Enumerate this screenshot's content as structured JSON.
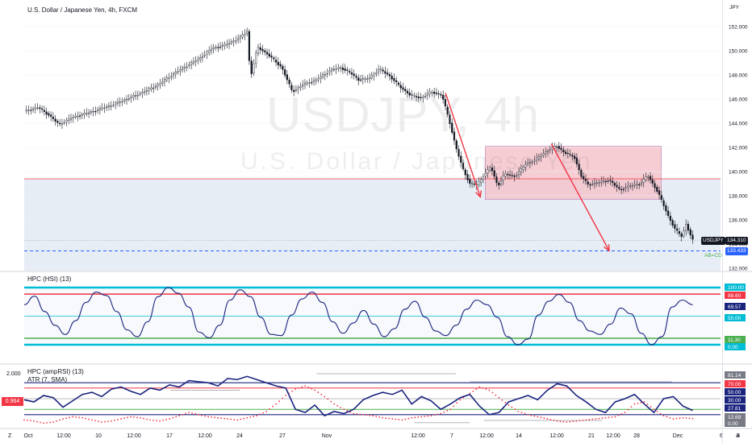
{
  "header": {
    "symbol_desc": "U.S. Dollar / Japanese Yen, 4h, FXCM",
    "currency": "JPY"
  },
  "watermark": {
    "line1": "USDJPY, 4h",
    "line2": "U.S. Dollar / Japanese Yen"
  },
  "indicators": {
    "hsi_title": "HPC (HSI) (13)",
    "amprsi_title": "HPC (ampRSI) (13)",
    "atr_title": "ATR (7, SMA)"
  },
  "badges": {
    "symbol": "USDJPY",
    "last_price": "134.310",
    "target_price": "133.433",
    "target_label": "AB=CD",
    "left_value": "0.964",
    "left_axis_value": "2.000"
  },
  "corner_labels": {
    "left": "Z",
    "right": "A"
  },
  "colors": {
    "accent_red": "#f23645",
    "navy": "#1a237e",
    "cyan": "#00bcd4",
    "green": "#4caf50",
    "dashed_blue": "#2962ff",
    "zone_blue": "#dfe7f2",
    "zone_pink": "#f5c5cc"
  },
  "chart_data": [
    {
      "type": "line",
      "name": "main-price",
      "x_tick_labels": [
        "Oct",
        "12:00",
        "10",
        "12:00",
        "17",
        "12:00",
        "24",
        "27",
        "Nov",
        "12:00",
        "7",
        "12:00",
        "14",
        "12:00",
        "21",
        "12:00",
        "28",
        "Dec",
        "6",
        "9"
      ],
      "y_tick_labels": [
        "152.000",
        "150.000",
        "148.000",
        "146.000",
        "144.000",
        "142.000",
        "140.000",
        "138.000",
        "136.000",
        "134.000",
        "132.000"
      ],
      "ylim": [
        131.3,
        153.4
      ],
      "price_path": [
        [
          0,
          145.0
        ],
        [
          0.02,
          145.3
        ],
        [
          0.035,
          144.7
        ],
        [
          0.05,
          143.9
        ],
        [
          0.07,
          144.5
        ],
        [
          0.1,
          145.0
        ],
        [
          0.13,
          145.6
        ],
        [
          0.16,
          146.3
        ],
        [
          0.19,
          147.1
        ],
        [
          0.22,
          148.3
        ],
        [
          0.25,
          149.3
        ],
        [
          0.27,
          150.2
        ],
        [
          0.29,
          150.5
        ],
        [
          0.31,
          151.1
        ],
        [
          0.32,
          151.6
        ],
        [
          0.325,
          147.8
        ],
        [
          0.335,
          150.3
        ],
        [
          0.35,
          149.7
        ],
        [
          0.37,
          148.6
        ],
        [
          0.385,
          146.6
        ],
        [
          0.4,
          147.2
        ],
        [
          0.42,
          147.6
        ],
        [
          0.44,
          148.4
        ],
        [
          0.455,
          148.6
        ],
        [
          0.47,
          148.1
        ],
        [
          0.48,
          147.6
        ],
        [
          0.495,
          147.7
        ],
        [
          0.51,
          148.5
        ],
        [
          0.525,
          147.9
        ],
        [
          0.54,
          147.0
        ],
        [
          0.555,
          146.3
        ],
        [
          0.57,
          146.1
        ],
        [
          0.585,
          146.6
        ],
        [
          0.6,
          146.3
        ],
        [
          0.61,
          144.3
        ],
        [
          0.62,
          142.0
        ],
        [
          0.63,
          140.2
        ],
        [
          0.64,
          139.0
        ],
        [
          0.65,
          138.9
        ],
        [
          0.66,
          139.7
        ],
        [
          0.67,
          140.4
        ],
        [
          0.68,
          138.8
        ],
        [
          0.69,
          139.8
        ],
        [
          0.705,
          139.6
        ],
        [
          0.72,
          140.6
        ],
        [
          0.735,
          141.0
        ],
        [
          0.75,
          141.7
        ],
        [
          0.765,
          142.1
        ],
        [
          0.775,
          141.6
        ],
        [
          0.79,
          141.2
        ],
        [
          0.8,
          139.6
        ],
        [
          0.81,
          138.9
        ],
        [
          0.825,
          139.1
        ],
        [
          0.84,
          139.3
        ],
        [
          0.855,
          138.5
        ],
        [
          0.87,
          138.8
        ],
        [
          0.885,
          139.0
        ],
        [
          0.895,
          139.7
        ],
        [
          0.91,
          138.3
        ],
        [
          0.925,
          136.3
        ],
        [
          0.935,
          135.2
        ],
        [
          0.945,
          134.6
        ],
        [
          0.95,
          135.7
        ],
        [
          0.96,
          134.31
        ]
      ],
      "horizontal_levels": [
        {
          "label": "resistance-red",
          "value": 139.4,
          "color": "#f23645"
        },
        {
          "label": "target-dashed",
          "value": 133.433,
          "color": "#2962ff"
        }
      ],
      "zones": [
        {
          "label": "blue-range",
          "from": 131.8,
          "to": 139.4
        },
        {
          "label": "pink-range",
          "from": 137.7,
          "to": 142.1
        }
      ],
      "arrows": [
        {
          "from": [
            146.5,
            0.605
          ],
          "to": [
            137.9,
            0.655
          ]
        },
        {
          "from": [
            142.3,
            0.757
          ],
          "to": [
            133.45,
            0.84
          ]
        }
      ]
    },
    {
      "type": "line",
      "name": "HPC (HSI) (13)",
      "ylim": [
        0,
        100
      ],
      "levels": [
        {
          "value": 100,
          "label": "100.00",
          "color": "#00bcd4"
        },
        {
          "value": 88.6,
          "label": "88.60",
          "color": "#f23645"
        },
        {
          "value": 69.57,
          "label": "69.57",
          "color": "#1a237e"
        },
        {
          "value": 50,
          "label": "50.00",
          "color": "#00bcd4"
        },
        {
          "value": 11.3,
          "label": "11.30",
          "color": "#4caf50"
        },
        {
          "value": 0,
          "label": "0.00",
          "color": "#00bcd4"
        }
      ],
      "values": [
        70,
        85,
        58,
        34,
        18,
        42,
        74,
        92,
        86,
        58,
        26,
        14,
        40,
        84,
        100,
        90,
        66,
        22,
        12,
        34,
        78,
        96,
        84,
        48,
        18,
        16,
        52,
        80,
        92,
        74,
        40,
        20,
        38,
        60,
        36,
        14,
        28,
        62,
        76,
        48,
        24,
        16,
        34,
        62,
        78,
        70,
        48,
        14,
        0,
        10,
        52,
        76,
        88,
        74,
        42,
        24,
        18,
        36,
        64,
        54,
        20,
        0,
        14,
        66,
        78,
        70
      ]
    },
    {
      "type": "line",
      "name": "HPC (ampRSI) (13)",
      "ylim": [
        0,
        100
      ],
      "levels": [
        {
          "value": 81.14,
          "label": "81.14",
          "color": "#787b86"
        },
        {
          "value": 70,
          "label": "70.00",
          "color": "#f23645"
        },
        {
          "value": 50,
          "label": "50.00",
          "color": "#1a237e"
        },
        {
          "value": 30,
          "label": "30.00",
          "color": "#1a237e"
        },
        {
          "value": 27.81,
          "label": "27.81",
          "color": "#1a237e"
        },
        {
          "value": 12.69,
          "label": "12.69",
          "color": "#787b86"
        },
        {
          "value": 0,
          "label": "0.00",
          "color": "#787b86"
        }
      ],
      "values": [
        48,
        44,
        56,
        52,
        34,
        46,
        58,
        62,
        54,
        68,
        72,
        64,
        58,
        70,
        66,
        76,
        72,
        84,
        82,
        80,
        74,
        88,
        86,
        92,
        86,
        80,
        74,
        70,
        30,
        24,
        38,
        18,
        26,
        22,
        30,
        48,
        56,
        62,
        58,
        66,
        40,
        54,
        46,
        30,
        40,
        52,
        58,
        36,
        20,
        24,
        44,
        50,
        56,
        48,
        66,
        78,
        74,
        56,
        44,
        30,
        24,
        44,
        50,
        58,
        40,
        24,
        50,
        54,
        36,
        27.81
      ],
      "atr_values": [
        10,
        8,
        4,
        6,
        12,
        16,
        14,
        10,
        6,
        8,
        12,
        16,
        14,
        10,
        8,
        12,
        18,
        24,
        20,
        16,
        14,
        12,
        10,
        14,
        18,
        26,
        40,
        56,
        68,
        74,
        66,
        54,
        40,
        30,
        22,
        20,
        18,
        14,
        12,
        10,
        14,
        16,
        18,
        22,
        30,
        48,
        60,
        72,
        66,
        52,
        38,
        26,
        20,
        16,
        12,
        8,
        6,
        8,
        10,
        12,
        14,
        16,
        24,
        40,
        44,
        30,
        18,
        12,
        14,
        12.69
      ]
    }
  ]
}
